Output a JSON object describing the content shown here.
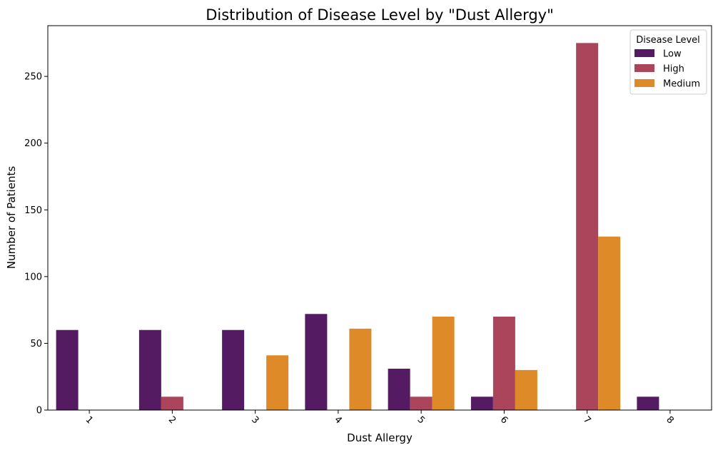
{
  "chart_data": {
    "type": "bar",
    "title": "Distribution of Disease Level by \"Dust Allergy\"",
    "xlabel": "Dust Allergy",
    "ylabel": "Number of Patients",
    "categories": [
      "1",
      "2",
      "3",
      "4",
      "5",
      "6",
      "7",
      "8"
    ],
    "series": [
      {
        "name": "Low",
        "color": "#541b63",
        "values": [
          60,
          60,
          60,
          72,
          31,
          10,
          0,
          10
        ]
      },
      {
        "name": "High",
        "color": "#ab455c",
        "values": [
          0,
          10,
          0,
          0,
          10,
          70,
          275,
          0
        ]
      },
      {
        "name": "Medium",
        "color": "#df8a29",
        "values": [
          0,
          0,
          41,
          61,
          70,
          30,
          130,
          0
        ]
      }
    ],
    "ylim": [
      0,
      288
    ],
    "yticks": [
      0,
      50,
      100,
      150,
      200,
      250
    ],
    "legend": {
      "title": "Disease Level",
      "placement": "top-right"
    },
    "grid": false
  }
}
